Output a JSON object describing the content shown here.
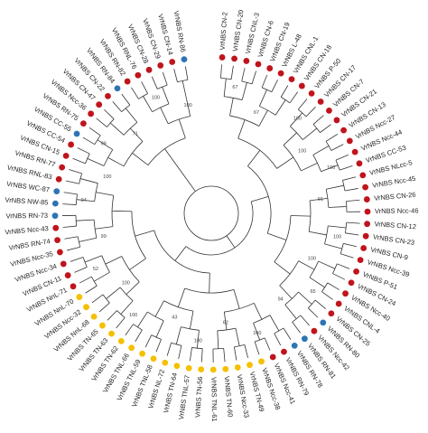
{
  "tree": {
    "leaves": [
      {
        "label": "VrNBS CN-2",
        "color": "#c0141c"
      },
      {
        "label": "VrNBS CN-20",
        "color": "#c0141c"
      },
      {
        "label": "VrNBS CNL-3",
        "color": "#c0141c"
      },
      {
        "label": "VrNBS CN-6",
        "color": "#c0141c"
      },
      {
        "label": "VrNBS CN-19",
        "color": "#c0141c"
      },
      {
        "label": "VrNBS L-48",
        "color": "#c0141c"
      },
      {
        "label": "VrNBS CNL-1",
        "color": "#c0141c"
      },
      {
        "label": "VrNBS CN-18",
        "color": "#c0141c"
      },
      {
        "label": "VrNBS P-50",
        "color": "#c0141c"
      },
      {
        "label": "VrNBS CN-17",
        "color": "#c0141c"
      },
      {
        "label": "VrNBS CN-7",
        "color": "#c0141c"
      },
      {
        "label": "VrNBS CN-21",
        "color": "#c0141c"
      },
      {
        "label": "VrNBS CN-13",
        "color": "#c0141c"
      },
      {
        "label": "VrNBS Ncc-27",
        "color": "#c0141c"
      },
      {
        "label": "VrNBS Ncc-44",
        "color": "#c0141c"
      },
      {
        "label": "VrNBS CC-53",
        "color": "#c0141c"
      },
      {
        "label": "VrNBS NLcc-5",
        "color": "#c0141c"
      },
      {
        "label": "VrNBS Ncc-45",
        "color": "#c0141c"
      },
      {
        "label": "VrNBS CN-26",
        "color": "#c0141c"
      },
      {
        "label": "VrNBS Ncc-46",
        "color": "#c0141c"
      },
      {
        "label": "VrNBS CN-12",
        "color": "#c0141c"
      },
      {
        "label": "VrNBS CN-23",
        "color": "#c0141c"
      },
      {
        "label": "VrNBS CN-9",
        "color": "#c0141c"
      },
      {
        "label": "VrNBS Ncc-39",
        "color": "#c0141c"
      },
      {
        "label": "VrNBS P-51",
        "color": "#c0141c"
      },
      {
        "label": "VrNBS CN-24",
        "color": "#c0141c"
      },
      {
        "label": "VrNBS Ncc-40",
        "color": "#c0141c"
      },
      {
        "label": "VrNBS CNL-4",
        "color": "#c0141c"
      },
      {
        "label": "VrNBS CN-25",
        "color": "#c0141c"
      },
      {
        "label": "VrNBS RN-80",
        "color": "#2e74b5"
      },
      {
        "label": "VrNBS Ncc-42",
        "color": "#c0141c"
      },
      {
        "label": "VrNBS RN-81",
        "color": "#2e74b5"
      },
      {
        "label": "VrNBS RN-78",
        "color": "#2e74b5"
      },
      {
        "label": "VrNBS RN-79",
        "color": "#c0141c"
      },
      {
        "label": "VrNBS Ncc-41",
        "color": "#c0141c"
      },
      {
        "label": "VrNBS Ncc-38",
        "color": "#f5c000"
      },
      {
        "label": "VrNBS TN-49",
        "color": "#f5c000"
      },
      {
        "label": "VrNBS Ncc-33",
        "color": "#f5c000"
      },
      {
        "label": "VrNBS TN-60",
        "color": "#f5c000"
      },
      {
        "label": "VrNBS TNL-61",
        "color": "#f5c000"
      },
      {
        "label": "VrNBS TN-56",
        "color": "#f5c000"
      },
      {
        "label": "VrNBS TNL-57",
        "color": "#f5c000"
      },
      {
        "label": "VrNBS TN-64",
        "color": "#f5c000"
      },
      {
        "label": "VrNBS NL-72",
        "color": "#f5c000"
      },
      {
        "label": "VrNBS TNL-58",
        "color": "#f5c000"
      },
      {
        "label": "VrNBS TNL-59",
        "color": "#f5c000"
      },
      {
        "label": "VrNBS TNL-66",
        "color": "#f5c000"
      },
      {
        "label": "VrNBS TN-62",
        "color": "#f5c000"
      },
      {
        "label": "VrNBS TN-63",
        "color": "#f5c000"
      },
      {
        "label": "VrNBS TN-65",
        "color": "#f5c000"
      },
      {
        "label": "VrNBS NnL-68",
        "color": "#f5c000"
      },
      {
        "label": "VrNBS Ncc-32",
        "color": "#f5c000"
      },
      {
        "label": "VrNBS NnL-70",
        "color": "#f5c000"
      },
      {
        "label": "VrNBS NnL-71",
        "color": "#c0141c"
      },
      {
        "label": "VrNBS CN-11",
        "color": "#c0141c"
      },
      {
        "label": "VrNBS Ncc-34",
        "color": "#c0141c"
      },
      {
        "label": "VrNBS Ncc-35",
        "color": "#c0141c"
      },
      {
        "label": "VrNBS RN-74",
        "color": "#c0141c"
      },
      {
        "label": "VrNBS Ncc-43",
        "color": "#c0141c"
      },
      {
        "label": "VrNBS RN-73",
        "color": "#2e74b5"
      },
      {
        "label": "VrNBS NW-85",
        "color": "#2e74b5"
      },
      {
        "label": "VrNBS WC-87",
        "color": "#2e74b5"
      },
      {
        "label": "VrNBS RNL-83",
        "color": "#c0141c"
      },
      {
        "label": "VrNBS RN-77",
        "color": "#c0141c"
      },
      {
        "label": "VrNBS CN-15",
        "color": "#c0141c"
      },
      {
        "label": "VrNBS CC-54",
        "color": "#c0141c"
      },
      {
        "label": "VrNBS CC-55",
        "color": "#2e74b5"
      },
      {
        "label": "VrNBS RN-75",
        "color": "#c0141c"
      },
      {
        "label": "VrNBS Ncc-36",
        "color": "#c0141c"
      },
      {
        "label": "VrNBS CN-47",
        "color": "#c0141c"
      },
      {
        "label": "VrNBS CN-22",
        "color": "#c0141c"
      },
      {
        "label": "VrNBS RN-84",
        "color": "#2e74b5"
      },
      {
        "label": "VrNBS RN-82",
        "color": "#c0141c"
      },
      {
        "label": "VrNBS RNL-76",
        "color": "#c0141c"
      },
      {
        "label": "VrNBS CN-28",
        "color": "#c0141c"
      },
      {
        "label": "VrNBS CN-29",
        "color": "#c0141c"
      },
      {
        "label": "VrNBS CN-14",
        "color": "#c0141c"
      },
      {
        "label": "VrNBS RN-86",
        "color": "#2e74b5"
      }
    ],
    "bootstrap": [
      67,
      67,
      100,
      100,
      100,
      91,
      100,
      100,
      65,
      94,
      100,
      62,
      100,
      43,
      100,
      100,
      52,
      99,
      94,
      100,
      99,
      71,
      100,
      100
    ]
  }
}
